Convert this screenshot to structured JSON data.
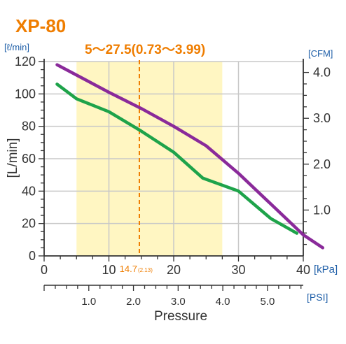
{
  "chart_data": {
    "type": "line",
    "title": "XP-80",
    "operating_range_label": "5～27.5(0.73～3.99)",
    "operating_range": {
      "x_from": 5,
      "x_to": 27.5
    },
    "reference_line": {
      "x": 14.7,
      "label": "14.7",
      "sublabel": "(2.13)"
    },
    "y_unit_label": "[ℓ/min]",
    "ylabel": "[L/min]",
    "y_right_unit_label": "[CFM]",
    "x_unit_label": "[kPa]",
    "x2_unit_label": "[PSI]",
    "xlabel": "Pressure",
    "xlim": [
      0,
      40
    ],
    "ylim": [
      0,
      120
    ],
    "x_ticks": [
      "0",
      "10",
      "20",
      "30",
      "40"
    ],
    "y_ticks": [
      "0",
      "20",
      "40",
      "60",
      "80",
      "100",
      "120"
    ],
    "y_right_ticks": [
      {
        "label": "1.0",
        "value": 1.0
      },
      {
        "label": "2.0",
        "value": 2.0
      },
      {
        "label": "3.0",
        "value": 3.0
      },
      {
        "label": "4.0",
        "value": 4.0
      }
    ],
    "psi_ticks": [
      {
        "label": "1.0",
        "value": 1.0
      },
      {
        "label": "2.0",
        "value": 2.0
      },
      {
        "label": "3.0",
        "value": 3.0
      },
      {
        "label": "4.0",
        "value": 4.0
      },
      {
        "label": "5.0",
        "value": 5.0
      }
    ],
    "series": [
      {
        "color": "#8a2a9a",
        "points": [
          [
            2,
            118
          ],
          [
            10,
            101
          ],
          [
            15,
            91
          ],
          [
            20,
            80
          ],
          [
            25,
            68
          ],
          [
            30,
            51
          ],
          [
            35,
            32
          ],
          [
            40,
            13
          ],
          [
            43,
            5
          ]
        ]
      },
      {
        "color": "#1ea34a",
        "points": [
          [
            2,
            106
          ],
          [
            5,
            97
          ],
          [
            10,
            89
          ],
          [
            15,
            77
          ],
          [
            20,
            64
          ],
          [
            24.5,
            48
          ],
          [
            30,
            40
          ],
          [
            35,
            23
          ],
          [
            39,
            14
          ]
        ]
      }
    ]
  }
}
